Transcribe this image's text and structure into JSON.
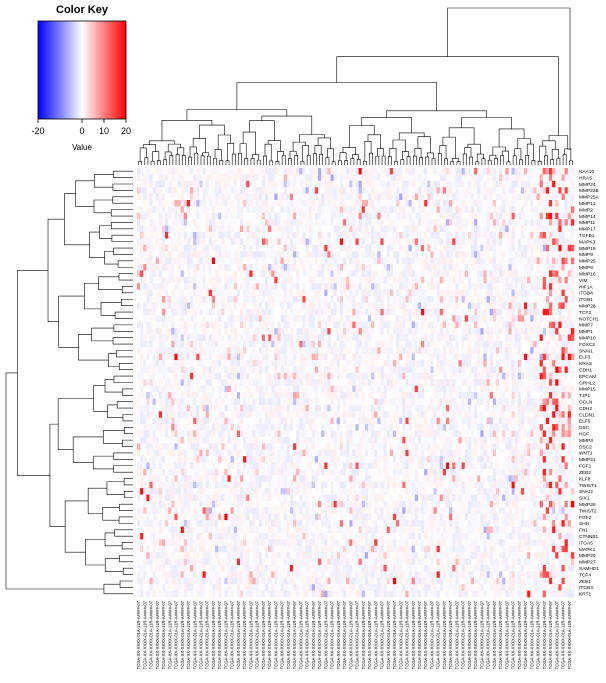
{
  "chart_data": {
    "type": "heatmap",
    "color_key": {
      "title": "Color Key",
      "xlabel": "Value",
      "ticks": [
        "-20",
        "0",
        "10",
        "20"
      ],
      "tick_values": [
        -20,
        0,
        10,
        20
      ],
      "range": [
        -20,
        20
      ],
      "colors": [
        "#0000ff",
        "#ffffff",
        "#ff0000"
      ]
    },
    "row_labels": [
      "NAA10",
      "HRAS",
      "MMP24",
      "MMP23B",
      "MMP25A",
      "MMP13",
      "MMP2",
      "MMP14",
      "MMP11",
      "MMP17",
      "TGFB1",
      "MAPK3",
      "MMP19",
      "MMP9",
      "MMP25",
      "MMP8",
      "MMP16",
      "VIM",
      "HIF1A",
      "ITGB4",
      "ITGB1",
      "MMP28",
      "TCF3",
      "NOTCH1",
      "MMP7",
      "MMP1",
      "MMP10",
      "FOXC2",
      "SNAI1",
      "ELF3",
      "KRAS",
      "CDH1",
      "EPCAM",
      "GRHL2",
      "MMP15",
      "TJP1",
      "OCLN",
      "CDH2",
      "CLDN1",
      "ELF5",
      "DSC",
      "HGF",
      "MMP3",
      "DSC2",
      "WNT1",
      "MMP21",
      "FGF1",
      "ZEB2",
      "KLF8",
      "TWIST1",
      "SNAI2",
      "SIX1",
      "MMP26",
      "TWIST2",
      "FGF2",
      "SHH",
      "FN1",
      "CTNNB1",
      "ITGA5",
      "MAPK1",
      "MMP20",
      "MMP27",
      "SAMHD1",
      "TCF4",
      "ZEB1",
      "ITGB3",
      "KRT1"
    ],
    "column_label_pattern": "TCGA-XX-XXXX-01A-11R-A####-07",
    "column_count": 140
  }
}
